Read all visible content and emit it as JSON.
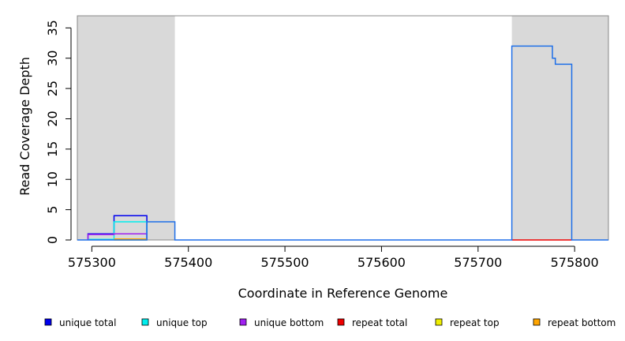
{
  "chart_data": {
    "type": "line",
    "xlabel": "Coordinate in Reference Genome",
    "ylabel": "Read Coverage Depth",
    "xlim": [
      575285,
      575835
    ],
    "ylim": [
      0,
      37
    ],
    "x_ticks": [
      "575300",
      "575400",
      "575500",
      "575600",
      "575700",
      "575800"
    ],
    "y_ticks": [
      "0",
      "5",
      "10",
      "15",
      "20",
      "25",
      "30",
      "35"
    ],
    "grid": false,
    "shaded_regions": [
      {
        "x_start": 575285,
        "x_end": 575386,
        "color": "#d9d9d9"
      },
      {
        "x_start": 575735,
        "x_end": 575835,
        "color": "#d9d9d9"
      }
    ],
    "series": [
      {
        "name": "unique total",
        "color": "#0000ee",
        "points": [
          [
            575296,
            0
          ],
          [
            575296,
            1
          ],
          [
            575323,
            1
          ],
          [
            575323,
            4
          ],
          [
            575357,
            4
          ],
          [
            575357,
            0
          ]
        ]
      },
      {
        "name": "unique top",
        "color": "#00eeee",
        "points": [
          [
            575296,
            0
          ],
          [
            575296,
            0.1
          ],
          [
            575323,
            0.1
          ],
          [
            575323,
            3
          ],
          [
            575357,
            3
          ],
          [
            575357,
            0
          ]
        ]
      },
      {
        "name": "unique bottom",
        "color": "#a020f0",
        "points": [
          [
            575296,
            0
          ],
          [
            575296,
            0.9
          ],
          [
            575323,
            0.9
          ],
          [
            575323,
            1
          ],
          [
            575357,
            1
          ],
          [
            575357,
            0
          ]
        ]
      },
      {
        "name": "repeat total",
        "color": "#ee0000",
        "points": [
          [
            575735,
            0
          ],
          [
            575797,
            0
          ]
        ]
      },
      {
        "name": "repeat top",
        "color": "#eeee00",
        "points": [
          [
            575323,
            0
          ],
          [
            575357,
            0
          ]
        ]
      },
      {
        "name": "repeat bottom",
        "color": "#ffa500",
        "points": [
          [
            575323,
            0.15
          ],
          [
            575357,
            0.15
          ]
        ]
      },
      {
        "color": "#1e6fe8",
        "points": [
          [
            575285,
            0
          ],
          [
            575357,
            0
          ],
          [
            575357,
            3
          ],
          [
            575386,
            3
          ],
          [
            575386,
            0
          ],
          [
            575735,
            0
          ],
          [
            575735,
            32
          ],
          [
            575777,
            32
          ],
          [
            575777,
            30
          ],
          [
            575780,
            30
          ],
          [
            575780,
            29
          ],
          [
            575797,
            29
          ],
          [
            575797,
            0
          ],
          [
            575835,
            0
          ]
        ]
      }
    ],
    "legend": {
      "placement": "bottom",
      "entries": [
        {
          "label": "unique total",
          "color": "#0000ee"
        },
        {
          "label": "unique top",
          "color": "#00eeee"
        },
        {
          "label": "unique bottom",
          "color": "#a020f0"
        },
        {
          "label": "repeat total",
          "color": "#ee0000"
        },
        {
          "label": "repeat top",
          "color": "#eeee00"
        },
        {
          "label": "repeat bottom",
          "color": "#ffa500"
        }
      ]
    }
  }
}
